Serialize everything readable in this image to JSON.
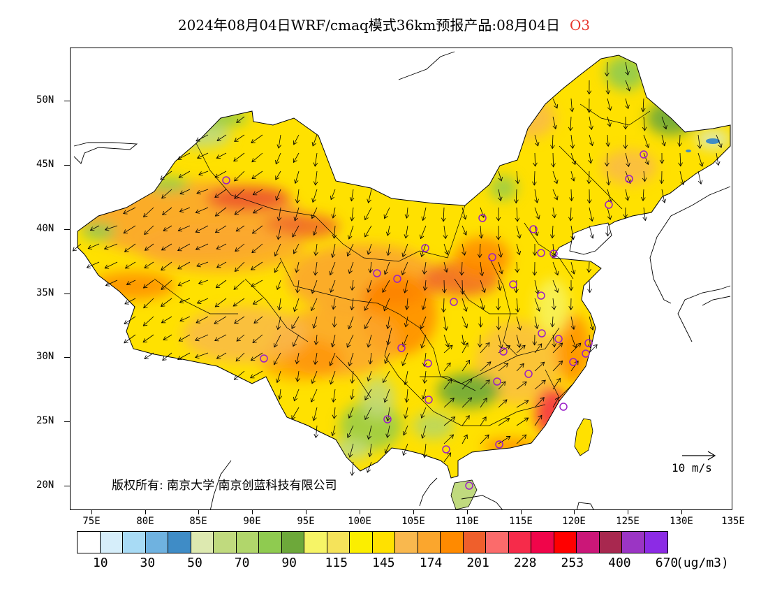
{
  "title": {
    "main": "2024年08月04日WRF/cmaq模式36km预报产品:08月04日",
    "pollutant": "O3"
  },
  "map": {
    "lat_labels": [
      "50N",
      "45N",
      "40N",
      "35N",
      "30N",
      "25N",
      "20N"
    ],
    "lon_labels": [
      "75E",
      "80E",
      "85E",
      "90E",
      "95E",
      "100E",
      "105E",
      "110E",
      "115E",
      "120E",
      "125E",
      "130E",
      "135E"
    ],
    "copyright": "版权所有: 南京大学 南京创蓝科技有限公司",
    "reference_vector_label": "10 m/s"
  },
  "colorbar": {
    "colors": [
      "#ffffff",
      "#d6eefa",
      "#a8dbf5",
      "#6fb2e0",
      "#3f8cc6",
      "#dde9b0",
      "#c0da7e",
      "#b1d66b",
      "#8fcb50",
      "#6da83a",
      "#f6f466",
      "#f5e35a",
      "#fbee00",
      "#ffe100",
      "#f9b84e",
      "#fba62d",
      "#ff8a00",
      "#ef5f2c",
      "#fb6b6b",
      "#f62b4a",
      "#f0054a",
      "#ff0000",
      "#cb1778",
      "#a8284f",
      "#9b35c4",
      "#8c2be5"
    ],
    "labels": [
      "10",
      "30",
      "50",
      "70",
      "90",
      "115",
      "145",
      "174",
      "201",
      "228",
      "253",
      "400",
      "670"
    ],
    "units": "(ug/m3)"
  },
  "legend_colors": {
    "boundary": "#000000",
    "city_marker": "#9a1ec8",
    "vector": "#000000"
  }
}
